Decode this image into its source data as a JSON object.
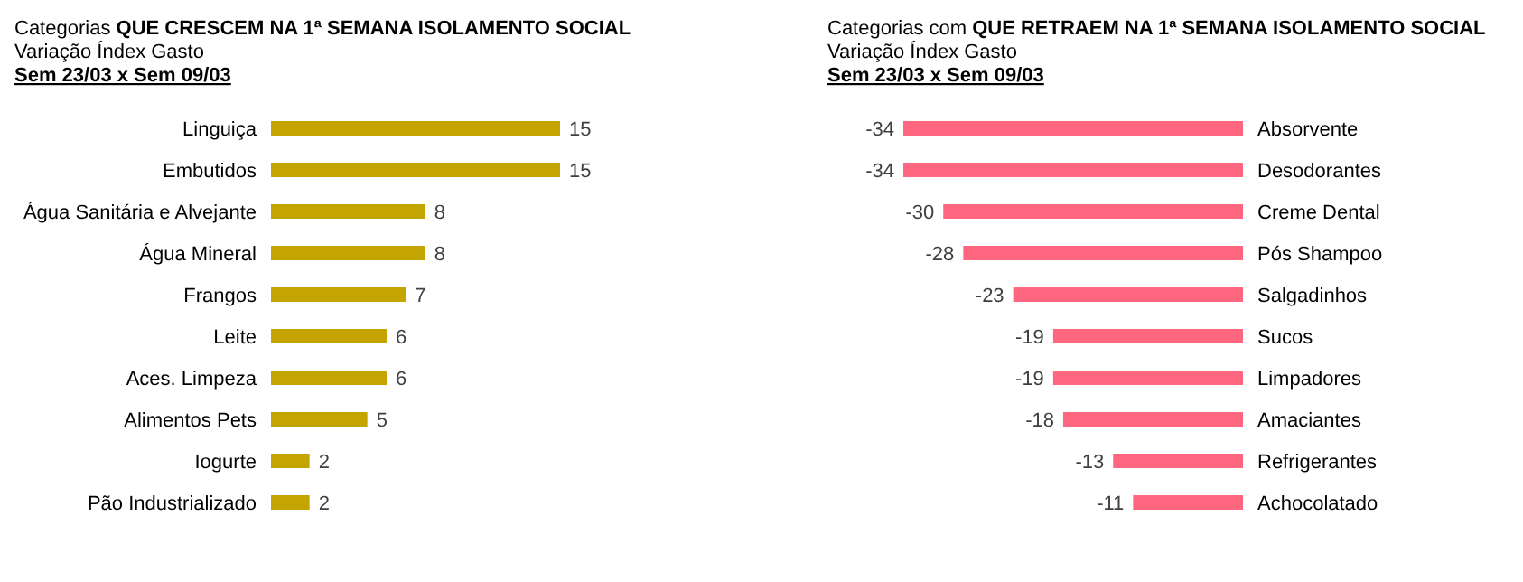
{
  "chart_data": [
    {
      "type": "bar",
      "orientation": "horizontal",
      "title": "Categorias QUE CRESCEM NA 1ª SEMANA ISOLAMENTO SOCIAL",
      "subtitle": "Variação Índex Gasto",
      "annotations": [
        "Sem 23/03 x Sem 09/03"
      ],
      "categories": [
        "Linguiça",
        "Embutidos",
        "Água Sanitária e Alvejante",
        "Água Mineral",
        "Frangos",
        "Leite",
        "Aces. Limpeza",
        "Alimentos Pets",
        "Iogurte",
        "Pão Industrializado"
      ],
      "values": [
        15,
        15,
        8,
        8,
        7,
        6,
        6,
        5,
        2,
        2
      ],
      "color": "#c4a400",
      "data_labels": true
    },
    {
      "type": "bar",
      "orientation": "horizontal",
      "title": "Categorias com QUE RETRAEM NA 1ª SEMANA ISOLAMENTO SOCIAL",
      "subtitle": "Variação Índex Gasto",
      "annotations": [
        "Sem 23/03 x Sem 09/03"
      ],
      "categories": [
        "Absorvente",
        "Desodorantes",
        "Creme Dental",
        "Pós Shampoo",
        "Salgadinhos",
        "Sucos",
        "Limpadores",
        "Amaciantes",
        "Refrigerantes",
        "Achocolatado"
      ],
      "values": [
        -34,
        -34,
        -30,
        -28,
        -23,
        -19,
        -19,
        -18,
        -13,
        -11
      ],
      "color": "#ff6680",
      "data_labels": true
    }
  ]
}
